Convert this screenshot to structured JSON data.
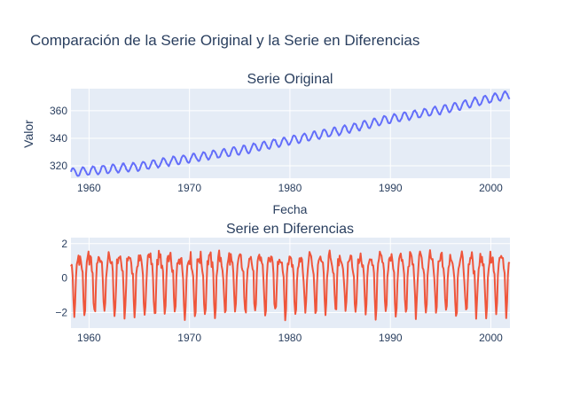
{
  "chart_data": [
    {
      "type": "line",
      "title": "Comparación de la Serie Original y la Serie en Diferencias",
      "subplot_title": "Serie Original",
      "xlabel": "Fecha",
      "ylabel": "Valor",
      "xlim": [
        1958.2,
        2001.9
      ],
      "ylim": [
        311,
        376
      ],
      "x_ticks": [
        1960,
        1970,
        1980,
        1990,
        2000
      ],
      "y_ticks": [
        320,
        340,
        360
      ],
      "x_tick_labels": [
        "1960",
        "1970",
        "1980",
        "1990",
        "2000"
      ],
      "y_tick_labels": [
        "320",
        "340",
        "360"
      ],
      "grid": true,
      "color": "#636efa",
      "series": [
        {
          "x_start": 1958.2,
          "x_end": 2001.9,
          "points_per_year": 12,
          "trend": [
            [
              1958,
              315.0
            ],
            [
              1965,
              319.5
            ],
            [
              1970,
              325.5
            ],
            [
              1975,
              331.0
            ],
            [
              1980,
              338.5
            ],
            [
              1985,
              345.5
            ],
            [
              1990,
              354.0
            ],
            [
              1995,
              360.5
            ],
            [
              2000,
              369.0
            ],
            [
              2001.9,
              371.5
            ]
          ],
          "seasonal_amplitude": 3.0
        }
      ]
    },
    {
      "type": "line",
      "subplot_title": "Serie en Diferencias",
      "xlabel": "",
      "ylabel": "",
      "xlim": [
        1958.2,
        2001.9
      ],
      "ylim": [
        -2.9,
        2.35
      ],
      "x_ticks": [
        1960,
        1970,
        1980,
        1990,
        2000
      ],
      "y_ticks": [
        -2,
        0,
        2
      ],
      "x_tick_labels": [
        "1960",
        "1970",
        "1980",
        "1990",
        "2000"
      ],
      "y_tick_labels": [
        "−2",
        "0",
        "2"
      ],
      "grid": true,
      "color": "#ef553b",
      "series": [
        {
          "x_start": 1958.2,
          "x_end": 2001.9,
          "points_per_year": 12,
          "monthly_pattern": [
            1.1,
            1.2,
            0.9,
            0.6,
            0.1,
            -1.2,
            -2.1,
            -1.7,
            -0.1,
            0.8,
            1.0,
            1.3
          ],
          "range": [
            -2.7,
            2.2
          ]
        }
      ]
    }
  ]
}
